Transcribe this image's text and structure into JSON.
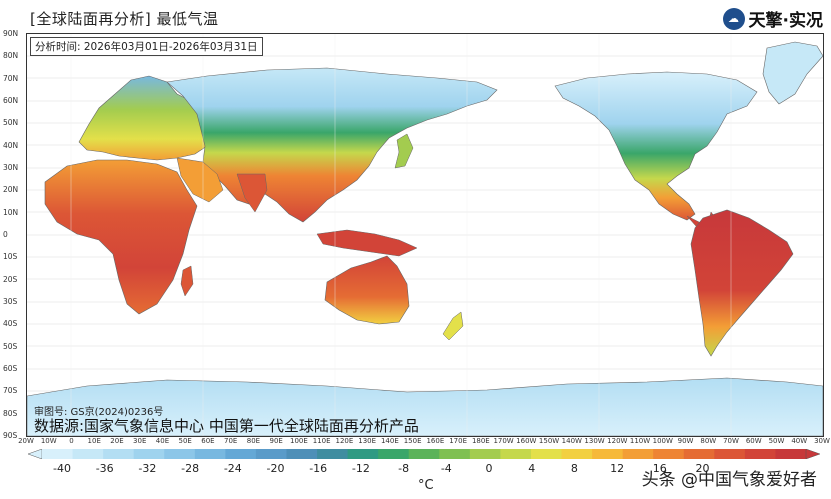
{
  "header": {
    "title": "[全球陆面再分析]  最低气温",
    "brand_logo_icon": "sky-logo-icon",
    "brand_name": "天擎·实况"
  },
  "analysis_period": "分析时间: 2026年03月01日-2026年03月31日",
  "footer": {
    "approval_no": "审图号: GS京(2024)0236号",
    "data_source": "数据源:国家气象信息中心  中国第一代全球陆面再分析产品"
  },
  "axes": {
    "lat_labels": [
      "90N",
      "80N",
      "70N",
      "60N",
      "50N",
      "40N",
      "30N",
      "20N",
      "10N",
      "0",
      "10S",
      "20S",
      "30S",
      "40S",
      "50S",
      "60S",
      "70S",
      "80S",
      "90S"
    ],
    "lon_labels": [
      "20W",
      "10W",
      "0",
      "10E",
      "20E",
      "30E",
      "40E",
      "50E",
      "60E",
      "70E",
      "80E",
      "90E",
      "100E",
      "110E",
      "120E",
      "130E",
      "140E",
      "150E",
      "160E",
      "170E",
      "180E",
      "170W",
      "160W",
      "150W",
      "140W",
      "130W",
      "120W",
      "110W",
      "100W",
      "90W",
      "80W",
      "70W",
      "60W",
      "50W",
      "40W",
      "30W"
    ]
  },
  "colorbar": {
    "ticks": [
      "-40",
      "-36",
      "-32",
      "-28",
      "-24",
      "-20",
      "-16",
      "-12",
      "-8",
      "-4",
      "0",
      "4",
      "8",
      "12",
      "16",
      "20"
    ],
    "colors": [
      "#d8f0fb",
      "#c6e8f7",
      "#b3def3",
      "#9fd3ee",
      "#8cc6e8",
      "#78b8e0",
      "#64a8d6",
      "#5a9bc9",
      "#4e8fb8",
      "#3f8da0",
      "#2f9a83",
      "#3aa66a",
      "#5bb35a",
      "#7fc052",
      "#a3cc4f",
      "#c5d84c",
      "#e3e04a",
      "#f2d041",
      "#f6b93a",
      "#f39e36",
      "#ee8434",
      "#e56c34",
      "#dc5636",
      "#d24438",
      "#c7383a"
    ],
    "unit": "°C"
  },
  "watermark": "头条 @中国气象爱好者",
  "map_layers": {
    "ocean_color": "#ffffff",
    "coast_color": "#555555",
    "grid_color": "#bbbbbb"
  }
}
